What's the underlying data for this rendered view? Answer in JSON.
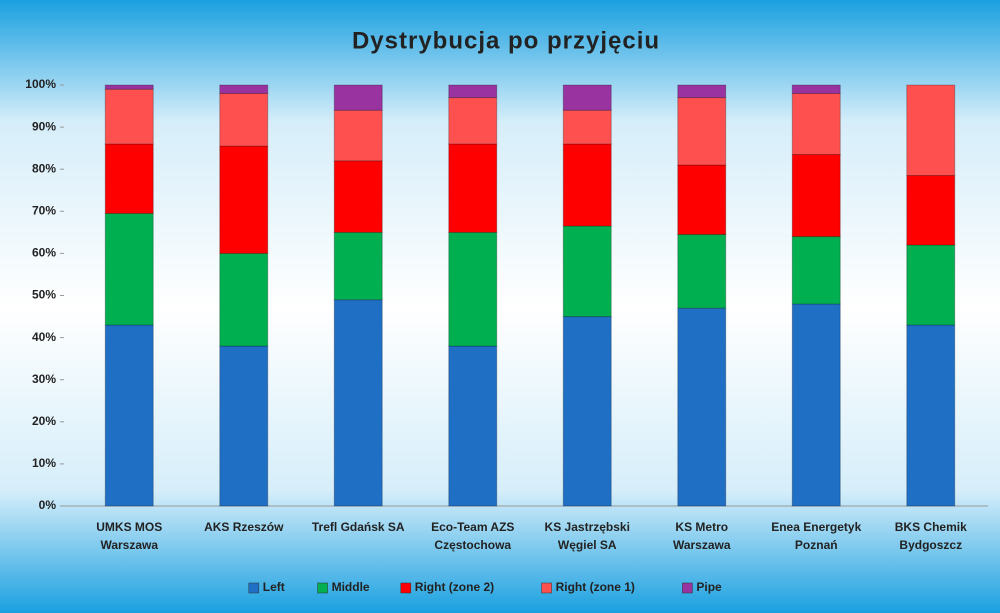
{
  "chart_data": {
    "type": "stacked_bar",
    "title": "Dystrybucja po przyjęciu",
    "categories": [
      "UMKS MOS\nWarszawa",
      "AKS Rzeszów",
      "Trefl Gdańsk SA",
      "Eco-Team AZS\nCzęstochowa",
      "KS Jastrzębski\nWęgiel SA",
      "KS Metro\nWarszawa",
      "Enea Energetyk\nPoznań",
      "BKS Chemik\nBydgoszcz"
    ],
    "series": [
      {
        "name": "Left",
        "color": "#1f6fc5",
        "values": [
          43,
          38,
          49,
          38,
          45,
          47,
          48,
          43
        ]
      },
      {
        "name": "Middle",
        "color": "#00b050",
        "values": [
          26.5,
          22,
          16,
          27,
          21.5,
          17.5,
          16,
          19
        ]
      },
      {
        "name": "Right (zone 2)",
        "color": "#ff0000",
        "values": [
          16.5,
          25.5,
          17,
          21,
          19.5,
          16.5,
          19.5,
          16.5
        ]
      },
      {
        "name": "Right (zone 1)",
        "color": "#ff5050",
        "values": [
          13,
          12.5,
          12,
          11,
          8,
          16,
          14.5,
          21.5
        ]
      },
      {
        "name": "Pipe",
        "color": "#9933a0",
        "values": [
          1,
          2,
          6,
          3,
          6,
          3,
          2,
          0
        ]
      }
    ],
    "ylim": [
      0,
      100
    ],
    "yticks": [
      {
        "value": 0,
        "label": "0%"
      },
      {
        "value": 10,
        "label": "10%"
      },
      {
        "value": 20,
        "label": "20%"
      },
      {
        "value": 30,
        "label": "30%"
      },
      {
        "value": 40,
        "label": "40%"
      },
      {
        "value": 50,
        "label": "50%"
      },
      {
        "value": 60,
        "label": "60%"
      },
      {
        "value": 70,
        "label": "70%"
      },
      {
        "value": 80,
        "label": "80%"
      },
      {
        "value": 90,
        "label": "90%"
      },
      {
        "value": 100,
        "label": "100%"
      }
    ],
    "legend": "bottom"
  }
}
